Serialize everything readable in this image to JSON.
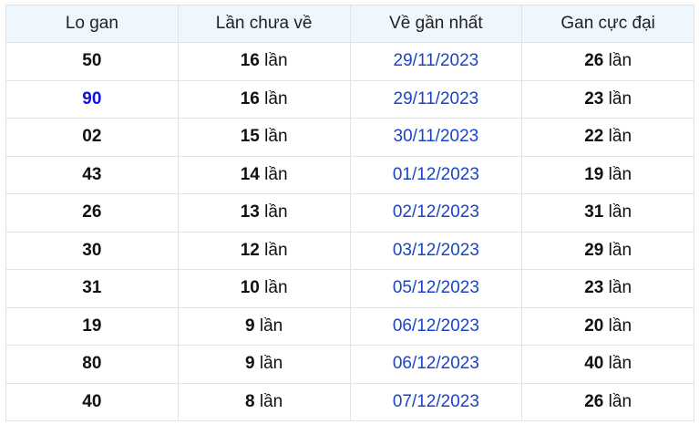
{
  "headers": [
    "Lo gan",
    "Lần chưa về",
    "Về gần nhất",
    "Gan cực đại"
  ],
  "unit": "lần",
  "accent_color": "#1010e0",
  "date_color": "#1a44c8",
  "rows": [
    {
      "lo": "50",
      "missed": "16",
      "last": "29/11/2023",
      "max": "26",
      "highlight": false
    },
    {
      "lo": "90",
      "missed": "16",
      "last": "29/11/2023",
      "max": "23",
      "highlight": true
    },
    {
      "lo": "02",
      "missed": "15",
      "last": "30/11/2023",
      "max": "22",
      "highlight": false
    },
    {
      "lo": "43",
      "missed": "14",
      "last": "01/12/2023",
      "max": "19",
      "highlight": false
    },
    {
      "lo": "26",
      "missed": "13",
      "last": "02/12/2023",
      "max": "31",
      "highlight": false
    },
    {
      "lo": "30",
      "missed": "12",
      "last": "03/12/2023",
      "max": "29",
      "highlight": false
    },
    {
      "lo": "31",
      "missed": "10",
      "last": "05/12/2023",
      "max": "23",
      "highlight": false
    },
    {
      "lo": "19",
      "missed": "9",
      "last": "06/12/2023",
      "max": "20",
      "highlight": false
    },
    {
      "lo": "80",
      "missed": "9",
      "last": "06/12/2023",
      "max": "40",
      "highlight": false
    },
    {
      "lo": "40",
      "missed": "8",
      "last": "07/12/2023",
      "max": "26",
      "highlight": false
    }
  ]
}
